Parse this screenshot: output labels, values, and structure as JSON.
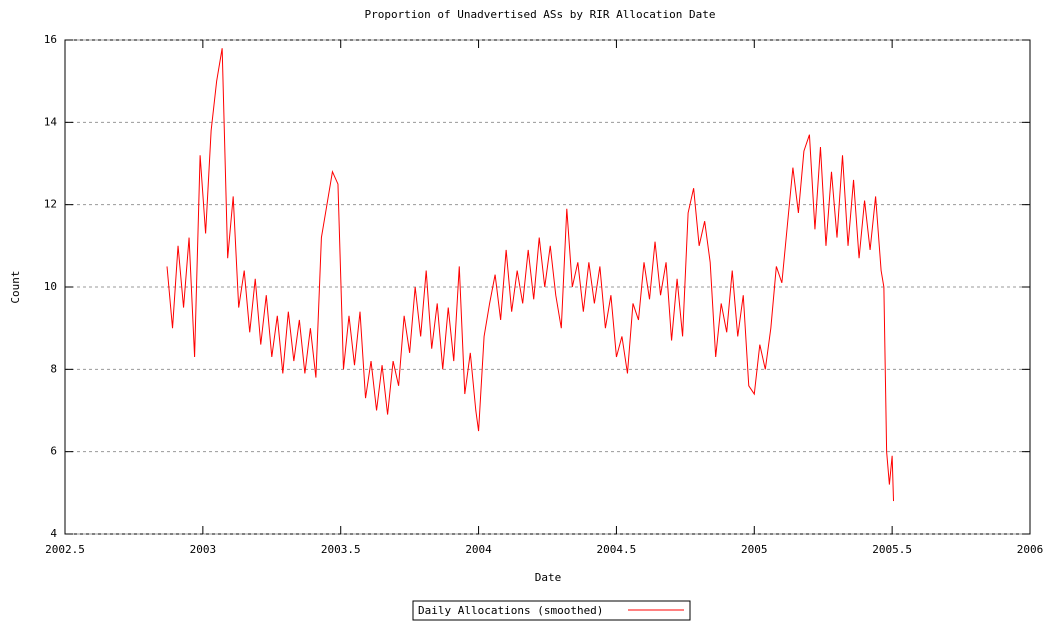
{
  "chart_data": {
    "type": "line",
    "title": "Proportion of Unadvertised ASs by RIR Allocation Date",
    "x_label": "Date",
    "y_label": "Count",
    "xlim": [
      2002.5,
      2006
    ],
    "xticks": [
      2002.5,
      2003,
      2003.5,
      2004,
      2004.5,
      2005,
      2005.5,
      2006
    ],
    "ylim": [
      4,
      16
    ],
    "yticks": [
      4,
      6,
      8,
      10,
      12,
      14,
      16
    ],
    "grid": true,
    "legend": "bottom",
    "x": [
      2002.87,
      2002.89,
      2002.91,
      2002.93,
      2002.95,
      2002.97,
      2002.99,
      2003.01,
      2003.03,
      2003.05,
      2003.07,
      2003.09,
      2003.11,
      2003.13,
      2003.15,
      2003.17,
      2003.19,
      2003.21,
      2003.23,
      2003.25,
      2003.27,
      2003.29,
      2003.31,
      2003.33,
      2003.35,
      2003.37,
      2003.39,
      2003.41,
      2003.43,
      2003.45,
      2003.47,
      2003.49,
      2003.51,
      2003.53,
      2003.55,
      2003.57,
      2003.59,
      2003.61,
      2003.63,
      2003.65,
      2003.67,
      2003.69,
      2003.71,
      2003.73,
      2003.75,
      2003.77,
      2003.79,
      2003.81,
      2003.83,
      2003.85,
      2003.87,
      2003.89,
      2003.91,
      2003.93,
      2003.95,
      2003.97,
      2003.99,
      2004.0,
      2004.02,
      2004.04,
      2004.06,
      2004.08,
      2004.1,
      2004.12,
      2004.14,
      2004.16,
      2004.18,
      2004.2,
      2004.22,
      2004.24,
      2004.26,
      2004.28,
      2004.3,
      2004.32,
      2004.34,
      2004.36,
      2004.38,
      2004.4,
      2004.42,
      2004.44,
      2004.46,
      2004.48,
      2004.5,
      2004.52,
      2004.54,
      2004.56,
      2004.58,
      2004.6,
      2004.62,
      2004.64,
      2004.66,
      2004.68,
      2004.7,
      2004.72,
      2004.74,
      2004.76,
      2004.78,
      2004.8,
      2004.82,
      2004.84,
      2004.86,
      2004.88,
      2004.9,
      2004.92,
      2004.94,
      2004.96,
      2004.98,
      2005.0,
      2005.02,
      2005.04,
      2005.06,
      2005.08,
      2005.1,
      2005.12,
      2005.14,
      2005.16,
      2005.18,
      2005.2,
      2005.22,
      2005.24,
      2005.26,
      2005.28,
      2005.3,
      2005.32,
      2005.34,
      2005.36,
      2005.38,
      2005.4,
      2005.42,
      2005.44,
      2005.46,
      2005.47,
      2005.48,
      2005.49,
      2005.5,
      2005.505
    ],
    "series": [
      {
        "name": "Daily Allocations (smoothed)",
        "color": "#ff0000",
        "values": [
          10.5,
          9.0,
          11.0,
          9.5,
          11.2,
          8.3,
          13.2,
          11.3,
          13.8,
          15.0,
          15.8,
          10.7,
          12.2,
          9.5,
          10.4,
          8.9,
          10.2,
          8.6,
          9.8,
          8.3,
          9.3,
          7.9,
          9.4,
          8.2,
          9.2,
          7.9,
          9.0,
          7.8,
          11.2,
          12.0,
          12.8,
          12.5,
          8.0,
          9.3,
          8.1,
          9.4,
          7.3,
          8.2,
          7.0,
          8.1,
          6.9,
          8.2,
          7.6,
          9.3,
          8.4,
          10.0,
          8.8,
          10.4,
          8.5,
          9.6,
          8.0,
          9.5,
          8.2,
          10.5,
          7.4,
          8.4,
          7.0,
          6.5,
          8.8,
          9.6,
          10.3,
          9.2,
          10.9,
          9.4,
          10.4,
          9.6,
          10.9,
          9.7,
          11.2,
          10.0,
          11.0,
          9.8,
          9.0,
          11.9,
          10.0,
          10.6,
          9.4,
          10.6,
          9.6,
          10.5,
          9.0,
          9.8,
          8.3,
          8.8,
          7.9,
          9.6,
          9.2,
          10.6,
          9.7,
          11.1,
          9.8,
          10.6,
          8.7,
          10.2,
          8.8,
          11.8,
          12.4,
          11.0,
          11.6,
          10.6,
          8.3,
          9.6,
          8.9,
          10.4,
          8.8,
          9.8,
          7.6,
          7.4,
          8.6,
          8.0,
          9.0,
          10.5,
          10.1,
          11.5,
          12.9,
          11.8,
          13.3,
          13.7,
          11.4,
          13.4,
          11.0,
          12.8,
          11.2,
          13.2,
          11.0,
          12.6,
          10.7,
          12.1,
          10.9,
          12.2,
          10.4,
          10.0,
          6.0,
          5.2,
          5.9,
          4.8
        ]
      }
    ]
  }
}
